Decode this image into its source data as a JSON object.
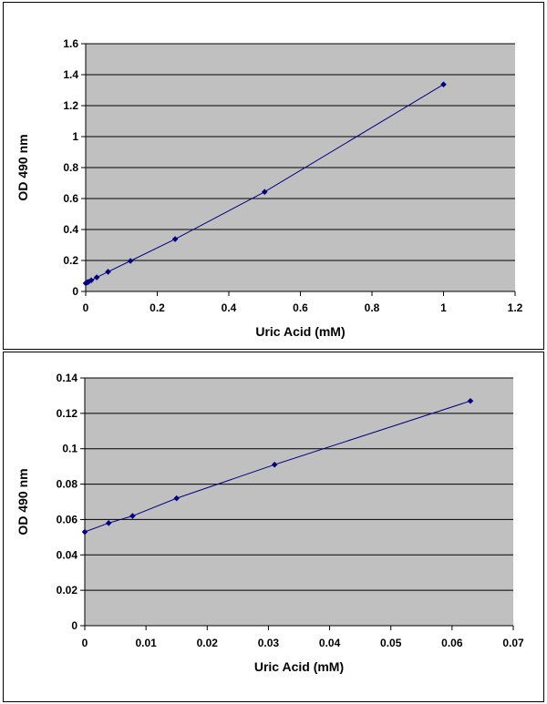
{
  "chart_data": [
    {
      "type": "line",
      "title": "",
      "xlabel": "Uric Acid (mM)",
      "ylabel": "OD 490 nm",
      "xlim": [
        0,
        1.2
      ],
      "ylim": [
        0,
        1.6
      ],
      "x_ticks": [
        0,
        0.2,
        0.4,
        0.6,
        0.8,
        1,
        1.2
      ],
      "x_tick_labels": [
        "0",
        "0.2",
        "0.4",
        "0.6",
        "0.8",
        "1",
        "1.2"
      ],
      "y_ticks": [
        0,
        0.2,
        0.4,
        0.6,
        0.8,
        1,
        1.2,
        1.4,
        1.6
      ],
      "y_tick_labels": [
        "0",
        "0.2",
        "0.4",
        "0.6",
        "0.8",
        "1",
        "1.2",
        "1.4",
        "1.6"
      ],
      "grid": "horizontal",
      "plot_background": "#c0c0c0",
      "series": [
        {
          "color": "#000080",
          "marker": "diamond",
          "x": [
            0,
            0.0039,
            0.0078,
            0.0156,
            0.031,
            0.0625,
            0.125,
            0.25,
            0.5,
            1.0
          ],
          "y": [
            0.053,
            0.058,
            0.062,
            0.072,
            0.091,
            0.127,
            0.197,
            0.338,
            0.643,
            1.337
          ]
        }
      ]
    },
    {
      "type": "line",
      "title": "",
      "xlabel": "Uric Acid (mM)",
      "ylabel": "OD 490 nm",
      "xlim": [
        0,
        0.07
      ],
      "ylim": [
        0,
        0.14
      ],
      "x_ticks": [
        0,
        0.01,
        0.02,
        0.03,
        0.04,
        0.05,
        0.06,
        0.07
      ],
      "x_tick_labels": [
        "0",
        "0.01",
        "0.02",
        "0.03",
        "0.04",
        "0.05",
        "0.06",
        "0.07"
      ],
      "y_ticks": [
        0,
        0.02,
        0.04,
        0.06,
        0.08,
        0.1,
        0.12,
        0.14
      ],
      "y_tick_labels": [
        "0",
        "0.02",
        "0.04",
        "0.06",
        "0.08",
        "0.1",
        "0.12",
        "0.14"
      ],
      "grid": "horizontal",
      "plot_background": "#c0c0c0",
      "series": [
        {
          "color": "#000080",
          "marker": "diamond",
          "x": [
            0,
            0.0039,
            0.0078,
            0.015,
            0.031,
            0.063
          ],
          "y": [
            0.053,
            0.058,
            0.062,
            0.072,
            0.091,
            0.127
          ]
        }
      ]
    }
  ]
}
